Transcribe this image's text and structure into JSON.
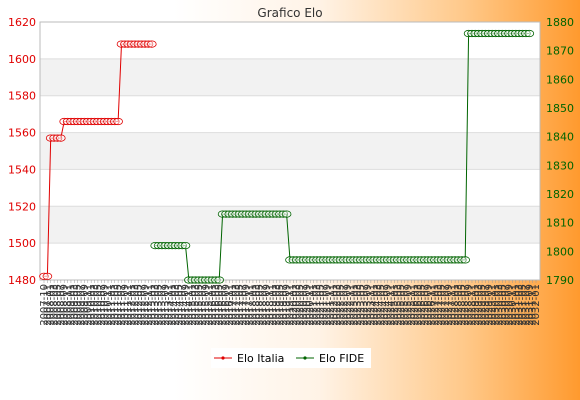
{
  "chart_data": {
    "type": "line",
    "title": "Grafico Elo",
    "xlabel": "",
    "ylabel_left": "",
    "ylabel_right": "",
    "x_tick_labels": [
      "2007-10",
      "2007-11",
      "2008-01",
      "2008-03",
      "2008-05",
      "2008-07",
      "2008-09",
      "2008-11",
      "2009-01",
      "2009-03",
      "2009-05",
      "2009-07",
      "2009-09",
      "2009-11",
      "2010-01",
      "2010-03",
      "2010-05",
      "2010-07",
      "2010-09",
      "2010-11",
      "2011-01",
      "2011-03",
      "2011-05",
      "2011-07",
      "2011-09",
      "2011-11",
      "2012-01",
      "2012-03",
      "2012-05",
      "2012-07",
      "2012-09",
      "2012-11",
      "2013-01",
      "2013-03",
      "2013-05",
      "2013-07",
      "2013-09",
      "2013-11",
      "2014-01",
      "2014-03",
      "2014-05",
      "2014-07",
      "2014-09",
      "2014-11",
      "2015-01",
      "2015-03",
      "2015-05",
      "2015-07",
      "2015-09",
      "2015-11",
      "2016-01",
      "2016-03",
      "2016-05",
      "2016-07",
      "2016-09",
      "2016-11",
      "2017-01",
      "2017-03",
      "2017-05",
      "2017-07",
      "2017-09",
      "2017-11",
      "2018-01",
      "2018-03",
      "2018-05",
      "2018-07",
      "2018-09",
      "2018-11",
      "2019-01",
      "2019-03",
      "2019-05",
      "2019-07",
      "2019-09",
      "2019-11",
      "2020-01",
      "2020-03",
      "2020-05",
      "2020-07",
      "2020-09",
      "2020-11",
      "2021-01",
      "2021-03",
      "2021-05",
      "2021-07",
      "2021-09",
      "2021-11",
      "2022-01",
      "2022-03",
      "2022-05",
      "2022-07",
      "2022-09",
      "2022-11",
      "2023-01",
      "2023-03",
      "2023-05",
      "2023-07",
      "2023-09",
      "2023-11",
      "2024-01",
      "2024-03",
      "2024-05",
      "2024-07",
      "2024-09",
      "2024-11",
      "2025-01",
      "2025-03",
      "2025-05",
      "2025-07",
      "2025-09",
      "2025-11",
      "2026-01",
      "2026-03",
      "2026-05",
      "2026-07",
      "2026-09",
      "2026-11",
      "2027-01",
      "2027-03",
      "2027-05",
      "2027-07",
      "2027-09",
      "2027-11",
      "2028-01",
      "2028-03",
      "2028-05",
      "2028-07",
      "2028-09",
      "2028-11",
      "2029-01",
      "2029-03",
      "2029-05",
      "2029-07",
      "2029-09",
      "2029-11",
      "2030-01",
      "2030-03",
      "2030-05",
      "2030-07",
      "2030-09",
      "2030-11",
      "2031-01",
      "2031-03",
      "2031-05",
      "2031-07",
      "2031-09",
      "2031-11",
      "2032-01"
    ],
    "y_left": {
      "min": 1480,
      "max": 1620,
      "ticks": [
        1480,
        1500,
        1520,
        1540,
        1560,
        1580,
        1600,
        1620
      ]
    },
    "y_right": {
      "min": 1790,
      "max": 1880,
      "ticks": [
        1790,
        1800,
        1810,
        1820,
        1830,
        1840,
        1850,
        1860,
        1870,
        1880
      ]
    },
    "series": [
      {
        "name": "Elo Italia",
        "axis": "left",
        "color": "#e00000",
        "segments": [
          {
            "from": 0,
            "to": 1,
            "value": 1482
          },
          {
            "from": 2,
            "to": 5,
            "value": 1557
          },
          {
            "from": 6,
            "to": 22,
            "value": 1566
          },
          {
            "from": 23,
            "to": 32,
            "value": 1608
          }
        ]
      },
      {
        "name": "Elo FIDE",
        "axis": "right",
        "color": "#006400",
        "segments": [
          {
            "from": 33,
            "to": 42,
            "value": 1802
          },
          {
            "from": 43,
            "to": 52,
            "value": 1790
          },
          {
            "from": 53,
            "to": 72,
            "value": 1813
          },
          {
            "from": 73,
            "to": 125,
            "value": 1797
          },
          {
            "from": 126,
            "to": 144,
            "value": 1876
          }
        ]
      }
    ],
    "grid": "horizontal",
    "legend": "bottom-center"
  }
}
